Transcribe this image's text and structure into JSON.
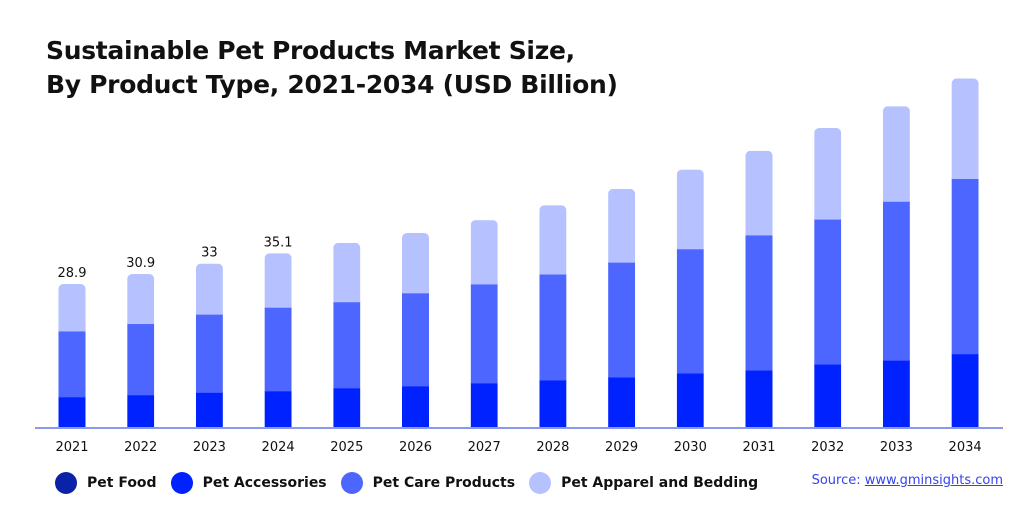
{
  "chart_data": {
    "type": "bar",
    "stacked": true,
    "title": "Sustainable Pet Products Market Size, By Product Type, 2021-2034 (USD Billion)",
    "title_lines": [
      "Sustainable Pet Products Market Size,",
      "By Product Type, 2021-2034 (USD Billion)"
    ],
    "xlabel": "",
    "ylabel": "",
    "ylim": [
      0,
      72
    ],
    "grid": false,
    "legend_position": "bottom-left",
    "categories": [
      "2021",
      "2022",
      "2023",
      "2024",
      "2025",
      "2026",
      "2027",
      "2028",
      "2029",
      "2030",
      "2031",
      "2032",
      "2033",
      "2034"
    ],
    "series": [
      {
        "name": "Pet Food",
        "color": "#0a22a8",
        "values": [
          0,
          0,
          0,
          0,
          0,
          0,
          0,
          0,
          0,
          0,
          0,
          0,
          0,
          0
        ]
      },
      {
        "name": "Pet Accessories",
        "color": "#0022ff",
        "values": [
          6.1,
          6.5,
          7.0,
          7.3,
          7.9,
          8.3,
          8.9,
          9.5,
          10.1,
          10.9,
          11.5,
          12.7,
          13.5,
          14.8
        ]
      },
      {
        "name": "Pet Care Products",
        "color": "#4d66ff",
        "values": [
          13.3,
          14.4,
          15.8,
          16.9,
          17.4,
          18.8,
          20.0,
          21.4,
          23.2,
          25.1,
          27.3,
          29.3,
          32.1,
          35.4
        ]
      },
      {
        "name": "Pet Apparel and Bedding",
        "color": "#b6c2ff",
        "values": [
          9.5,
          10.0,
          10.2,
          10.9,
          11.9,
          12.1,
          12.9,
          13.9,
          14.8,
          16.0,
          17.0,
          18.4,
          19.2,
          20.2
        ]
      }
    ],
    "data_labels": [
      {
        "category": "2021",
        "text": "28.9"
      },
      {
        "category": "2022",
        "text": "30.9"
      },
      {
        "category": "2023",
        "text": "33"
      },
      {
        "category": "2024",
        "text": "35.1"
      }
    ],
    "axis_color": "#8899ee"
  },
  "source": {
    "prefix": "Source: ",
    "link_text": "www.gminsights.com"
  }
}
